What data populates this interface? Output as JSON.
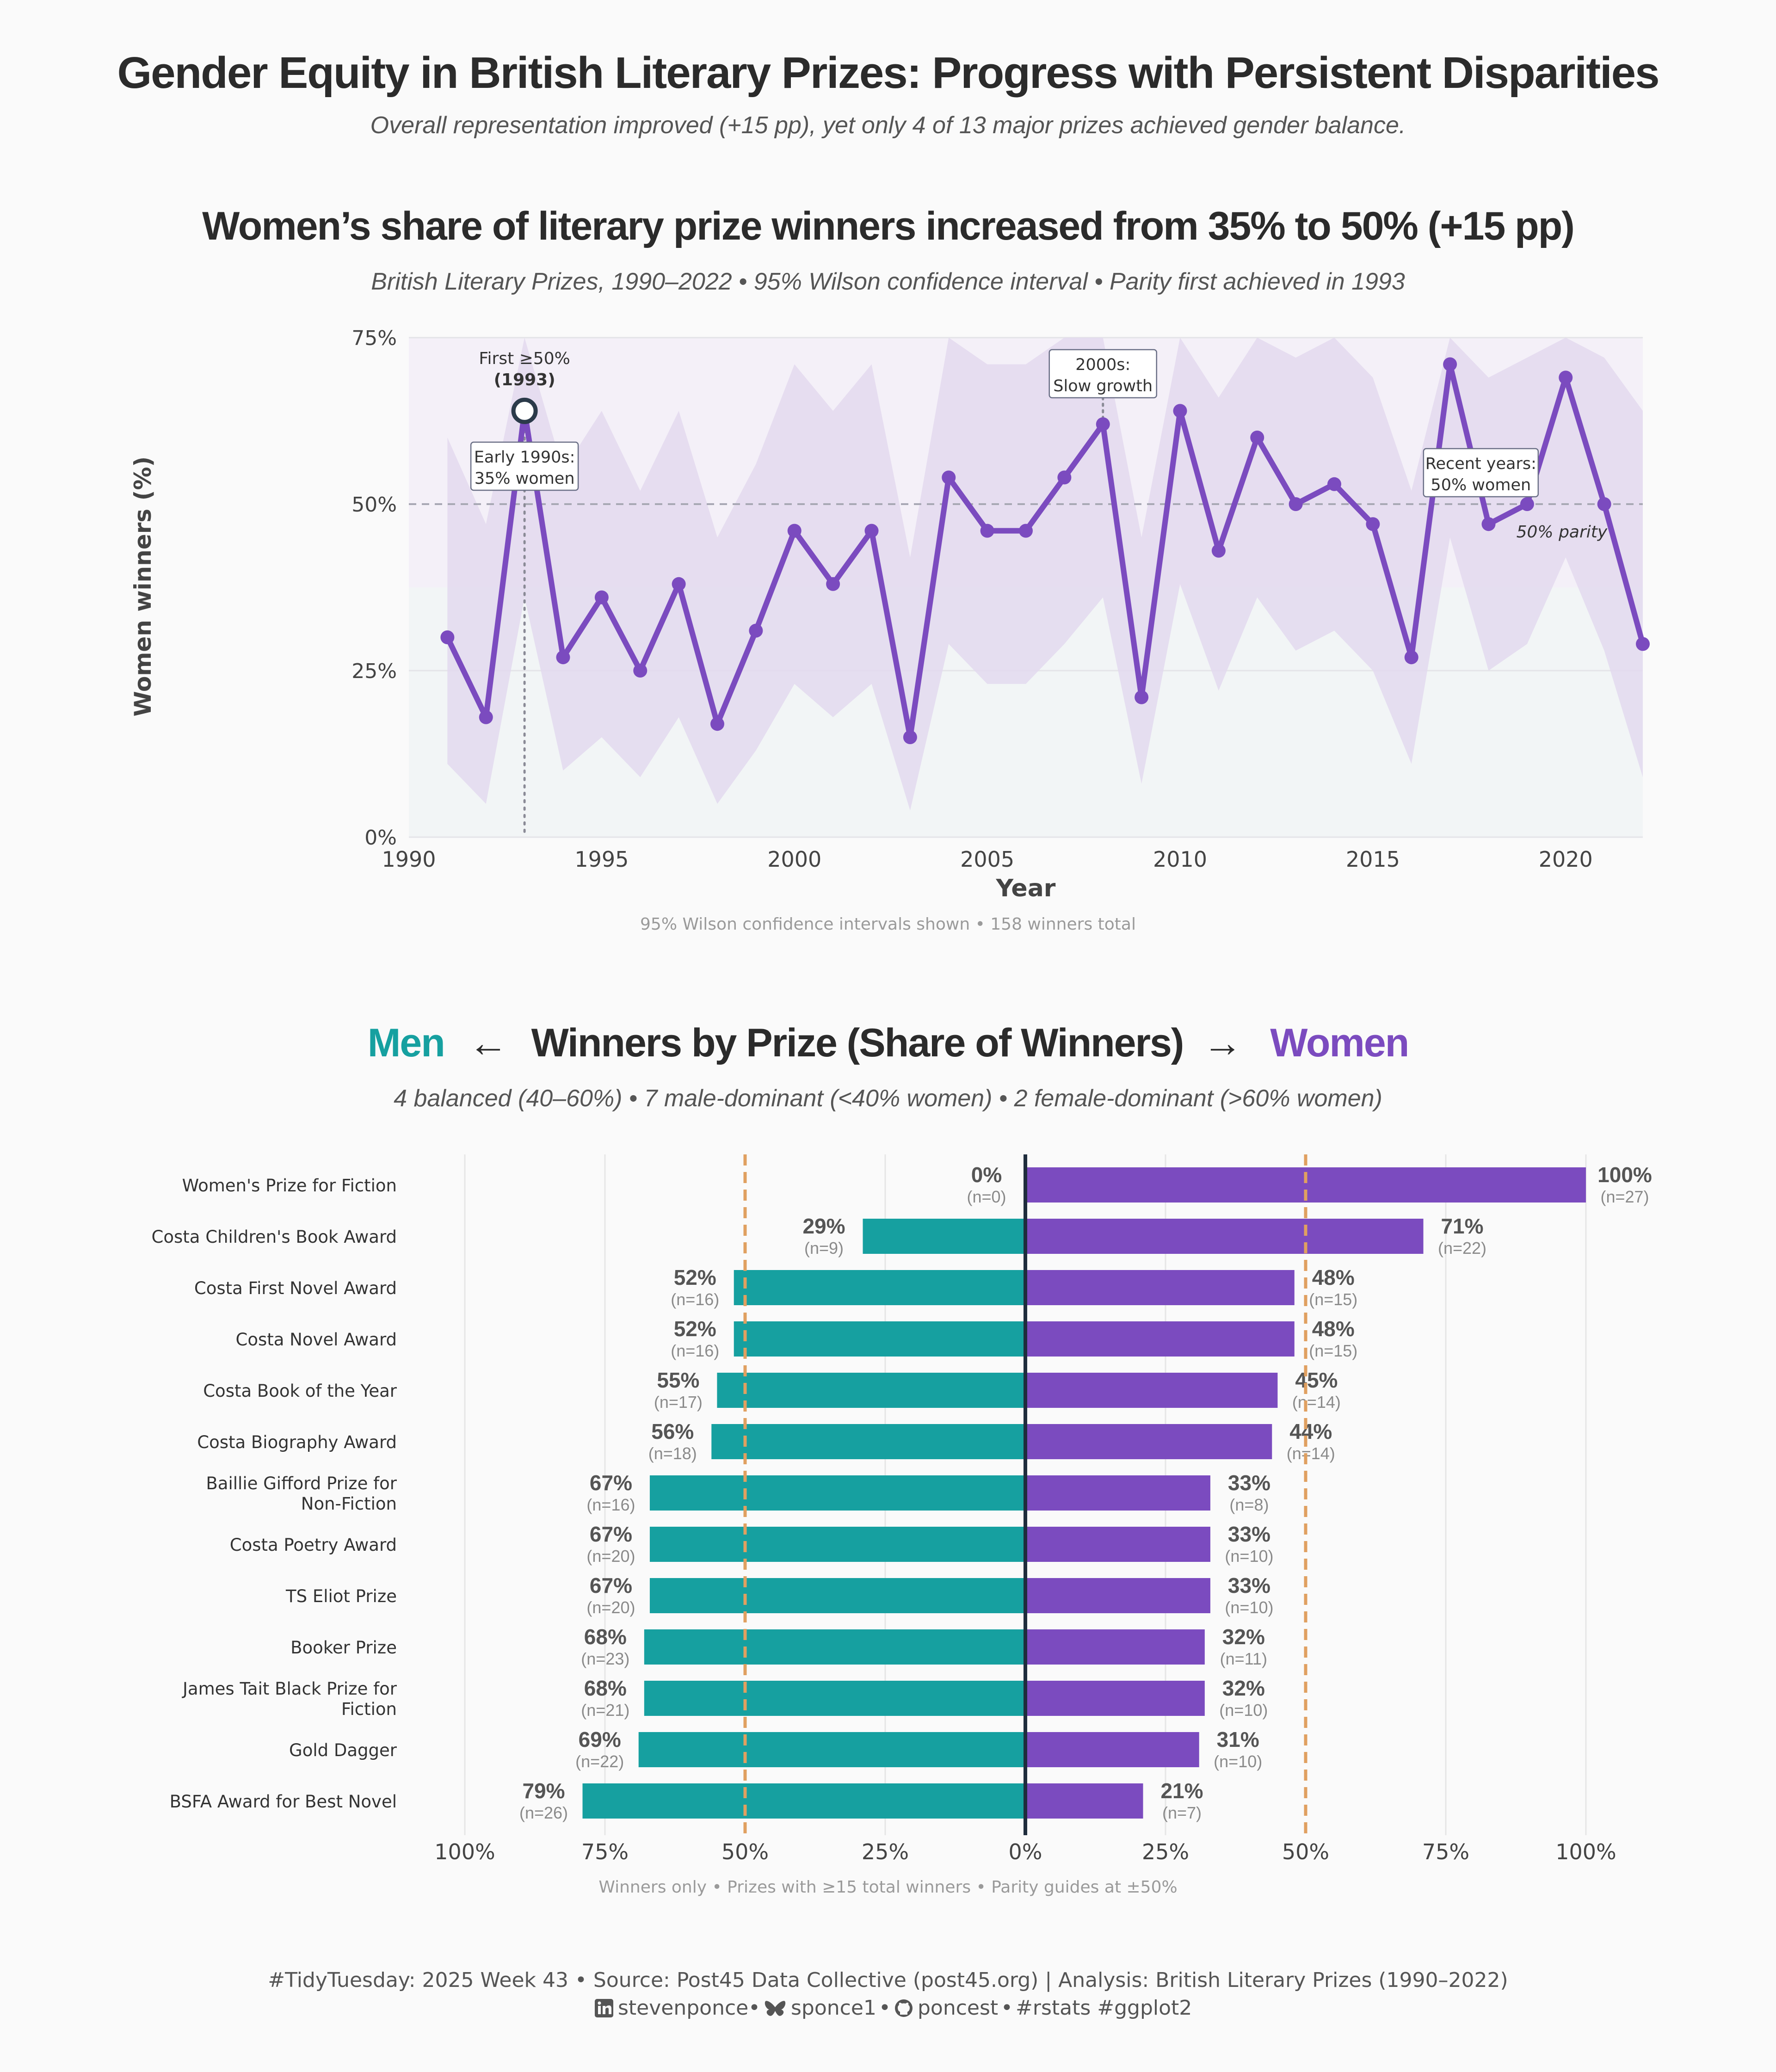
{
  "header": {
    "title": "Gender Equity in British Literary Prizes: Progress with Persistent Disparities",
    "subtitle": "Overall representation improved (+15 pp), yet only 4 of 13 major prizes achieved gender balance."
  },
  "colors": {
    "women": "#7b4bbf",
    "men": "#16a0a0",
    "band": "#e3d9ef",
    "parity_guide": "#e0a060",
    "zero_line": "#1f2d3d"
  },
  "chart_data": [
    {
      "type": "line",
      "title": "Women’s share of literary prize winners increased from 35% to 50% (+15 pp)",
      "subtitle": "British Literary Prizes, 1990–2022 • 95% Wilson confidence interval • Parity first achieved in 1993",
      "xlabel": "Year",
      "ylabel": "Women winners (%)",
      "xlim": [
        1990,
        2022
      ],
      "ylim": [
        0,
        75
      ],
      "x_ticks": [
        1990,
        1995,
        2000,
        2005,
        2010,
        2015,
        2020
      ],
      "y_ticks": [
        0,
        25,
        50,
        75
      ],
      "y_tick_labels": [
        "0%",
        "25%",
        "50%",
        "75%"
      ],
      "reference_line": {
        "y": 50,
        "label": "50% parity"
      },
      "grid": true,
      "series": [
        {
          "x": [
            1991,
            1992,
            1993,
            1994,
            1995,
            1996,
            1997,
            1998,
            1999,
            2000,
            2001,
            2002,
            2003,
            2004,
            2005,
            2006,
            2007,
            2008,
            2009,
            2010,
            2011,
            2012,
            2013,
            2014,
            2015,
            2016,
            2017,
            2018,
            2019,
            2020,
            2021,
            2022
          ],
          "values": [
            30,
            18,
            64,
            27,
            36,
            25,
            38,
            17,
            31,
            46,
            38,
            46,
            15,
            54,
            46,
            46,
            54,
            62,
            21,
            64,
            43,
            60,
            50,
            53,
            47,
            27,
            71,
            47,
            50,
            69,
            50,
            29
          ],
          "ci_low": [
            11,
            5,
            36,
            10,
            15,
            9,
            18,
            5,
            13,
            23,
            18,
            23,
            4,
            29,
            23,
            23,
            29,
            36,
            8,
            38,
            22,
            36,
            28,
            31,
            25,
            11,
            45,
            25,
            29,
            42,
            28,
            9
          ],
          "ci_high": [
            60,
            47,
            75,
            55,
            64,
            52,
            64,
            45,
            56,
            71,
            64,
            71,
            42,
            78,
            71,
            71,
            78,
            82,
            45,
            84,
            66,
            80,
            72,
            75,
            69,
            52,
            88,
            69,
            72,
            87,
            72,
            64
          ]
        }
      ],
      "highlight": {
        "x": 1993,
        "y": 64
      },
      "annotations": [
        {
          "id": "first",
          "line1": "First ≥50%",
          "line2": "(1993)"
        },
        {
          "id": "early",
          "line1": "Early 1990s:",
          "line2": "35% women"
        },
        {
          "id": "s2000",
          "line1": "2000s:",
          "line2": "Slow growth"
        },
        {
          "id": "recent",
          "line1": "Recent years:",
          "line2": "50% women"
        }
      ],
      "footnote": "95% Wilson confidence intervals shown • 158 winners total"
    },
    {
      "type": "bar",
      "orientation": "diverging-horizontal",
      "title_left": "Men",
      "title_left_arrow": "←",
      "title_middle": "Winners by Prize (Share of Winners)",
      "title_right_arrow": "→",
      "title_right": "Women",
      "subtitle": "4 balanced (40–60%) • 7 male-dominant (<40% women) • 2 female-dominant (>60% women)",
      "xlim": [
        -100,
        100
      ],
      "x_ticks": [
        -100,
        -75,
        -50,
        -25,
        0,
        25,
        50,
        75,
        100
      ],
      "x_tick_labels": [
        "100%",
        "75%",
        "50%",
        "25%",
        "0%",
        "25%",
        "50%",
        "75%",
        "100%"
      ],
      "parity_guides": [
        -50,
        50
      ],
      "categories": [
        "Women's Prize for Fiction",
        "Costa Children's Book Award",
        "Costa First Novel Award",
        "Costa Novel Award",
        "Costa Book of the Year",
        "Costa Biography Award",
        "Baillie Gifford Prize for\nNon-Fiction",
        "Costa Poetry Award",
        "TS Eliot Prize",
        "Booker Prize",
        "James Tait Black Prize for\nFiction",
        "Gold Dagger",
        "BSFA Award for Best Novel"
      ],
      "series": [
        {
          "name": "Men",
          "values": [
            0,
            29,
            52,
            52,
            55,
            56,
            67,
            67,
            67,
            68,
            68,
            69,
            79
          ],
          "labels": [
            "0%",
            "29%",
            "52%",
            "52%",
            "55%",
            "56%",
            "67%",
            "67%",
            "67%",
            "68%",
            "68%",
            "69%",
            "79%"
          ],
          "n_labels": [
            "(n=0)",
            "(n=9)",
            "(n=16)",
            "(n=16)",
            "(n=17)",
            "(n=18)",
            "(n=16)",
            "(n=20)",
            "(n=20)",
            "(n=23)",
            "(n=21)",
            "(n=22)",
            "(n=26)"
          ]
        },
        {
          "name": "Women",
          "values": [
            100,
            71,
            48,
            48,
            45,
            44,
            33,
            33,
            33,
            32,
            32,
            31,
            21
          ],
          "labels": [
            "100%",
            "71%",
            "48%",
            "48%",
            "45%",
            "44%",
            "33%",
            "33%",
            "33%",
            "32%",
            "32%",
            "31%",
            "21%"
          ],
          "n_labels": [
            "(n=27)",
            "(n=22)",
            "(n=15)",
            "(n=15)",
            "(n=14)",
            "(n=14)",
            "(n=8)",
            "(n=10)",
            "(n=10)",
            "(n=11)",
            "(n=10)",
            "(n=10)",
            "(n=7)"
          ]
        }
      ],
      "footnote": "Winners only • Prizes with ≥15 total winners • Parity guides at ±50%"
    }
  ],
  "footer": {
    "line1": "#TidyTuesday: 2025 Week 43 • Source: Post45 Data Collective (post45.org) |  Analysis: British Literary Prizes (1990–2022)",
    "linkedin": "stevenponce",
    "bluesky": "sponce1",
    "github": "poncest",
    "tags": "#rstats #ggplot2"
  }
}
